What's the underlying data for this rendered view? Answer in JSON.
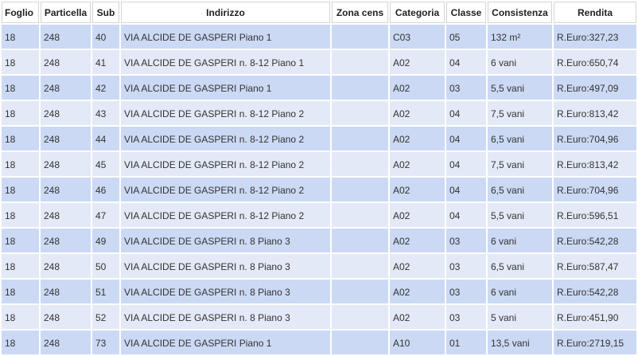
{
  "table": {
    "columns": [
      "Foglio",
      "Particella",
      "Sub",
      "Indirizzo",
      "Zona cens",
      "Categoria",
      "Classe",
      "Consistenza",
      "Rendita"
    ],
    "rows": [
      [
        "18",
        "248",
        "40",
        "VIA ALCIDE DE GASPERI Piano 1",
        "",
        "C03",
        "05",
        "132 m²",
        "R.Euro:327,23"
      ],
      [
        "18",
        "248",
        "41",
        "VIA ALCIDE DE GASPERI n. 8-12 Piano 1",
        "",
        "A02",
        "04",
        "6 vani",
        "R.Euro:650,74"
      ],
      [
        "18",
        "248",
        "42",
        "VIA ALCIDE DE GASPERI Piano 1",
        "",
        "A02",
        "03",
        "5,5 vani",
        "R.Euro:497,09"
      ],
      [
        "18",
        "248",
        "43",
        "VIA ALCIDE DE GASPERI n. 8-12 Piano 2",
        "",
        "A02",
        "04",
        "7,5 vani",
        "R.Euro:813,42"
      ],
      [
        "18",
        "248",
        "44",
        "VIA ALCIDE DE GASPERI n. 8-12 Piano 2",
        "",
        "A02",
        "04",
        "6,5 vani",
        "R.Euro:704,96"
      ],
      [
        "18",
        "248",
        "45",
        "VIA ALCIDE DE GASPERI n. 8-12 Piano 2",
        "",
        "A02",
        "04",
        "7,5 vani",
        "R.Euro:813,42"
      ],
      [
        "18",
        "248",
        "46",
        "VIA ALCIDE DE GASPERI n. 8-12 Piano 2",
        "",
        "A02",
        "04",
        "6,5 vani",
        "R.Euro:704,96"
      ],
      [
        "18",
        "248",
        "47",
        "VIA ALCIDE DE GASPERI n. 8-12 Piano 2",
        "",
        "A02",
        "04",
        "5,5 vani",
        "R.Euro:596,51"
      ],
      [
        "18",
        "248",
        "49",
        "VIA ALCIDE DE GASPERI n. 8 Piano 3",
        "",
        "A02",
        "03",
        "6 vani",
        "R.Euro:542,28"
      ],
      [
        "18",
        "248",
        "50",
        "VIA ALCIDE DE GASPERI n. 8 Piano 3",
        "",
        "A02",
        "03",
        "6,5 vani",
        "R.Euro:587,47"
      ],
      [
        "18",
        "248",
        "51",
        "VIA ALCIDE DE GASPERI n. 8 Piano 3",
        "",
        "A02",
        "03",
        "6 vani",
        "R.Euro:542,28"
      ],
      [
        "18",
        "248",
        "52",
        "VIA ALCIDE DE GASPERI n. 8 Piano 3",
        "",
        "A02",
        "03",
        "5 vani",
        "R.Euro:451,90"
      ],
      [
        "18",
        "248",
        "73",
        "VIA ALCIDE DE GASPERI Piano 1",
        "",
        "A10",
        "01",
        "13,5 vani",
        "R.Euro:2719,15"
      ]
    ]
  }
}
